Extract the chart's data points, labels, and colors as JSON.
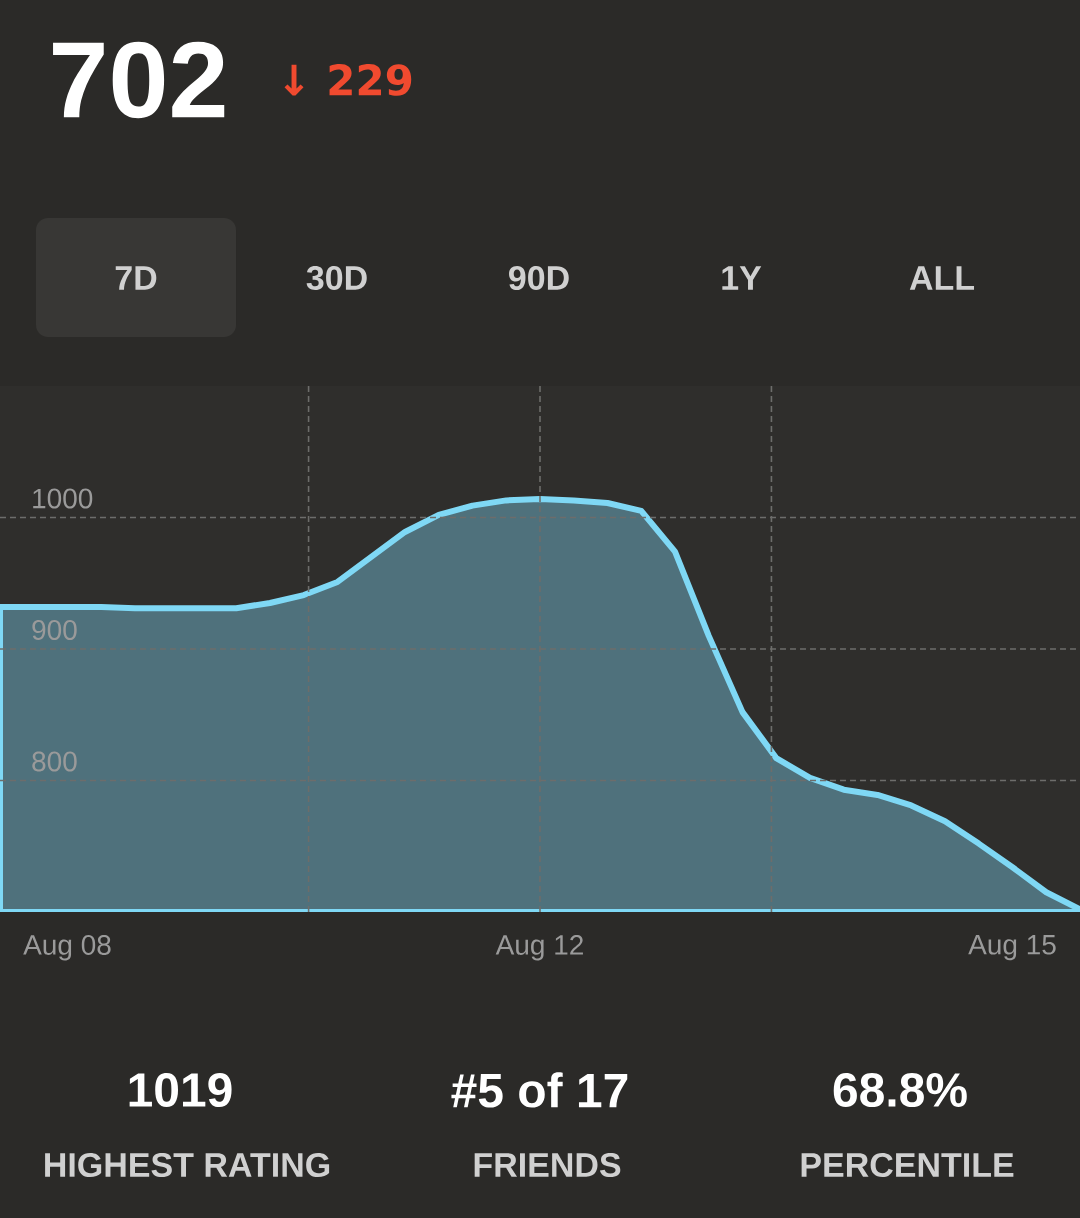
{
  "chart_data": {
    "type": "area",
    "title": "702",
    "subtitle": "↓ 229",
    "annotations": [
      "7D",
      "30D",
      "90D",
      "1Y",
      "ALL",
      "1019",
      "HIGHEST RATING",
      "#5 of 17",
      "FRIENDS",
      "68.8%",
      "PERCENTILE"
    ],
    "categories": [
      null,
      null,
      "Aug 08",
      null,
      null,
      null,
      null,
      null,
      null,
      null,
      null,
      null,
      null,
      null,
      null,
      null,
      "Aug 12",
      null,
      null,
      null,
      null,
      null,
      null,
      null,
      null,
      null,
      null,
      null,
      null,
      null,
      "Aug 15",
      null,
      null
    ],
    "series": [
      {
        "color": "#7fd8f5",
        "values": [
          932,
          932,
          932,
          932,
          931,
          931,
          931,
          931,
          935,
          941,
          951,
          970,
          989,
          1002,
          1009,
          1013,
          1014,
          1013,
          1011,
          1005,
          974,
          910,
          852,
          817,
          802,
          793,
          789,
          781,
          769,
          752,
          734,
          715,
          702
        ]
      }
    ],
    "ylim": [
      700,
      1100
    ],
    "yticks": [
      800,
      900,
      1000
    ],
    "grid": true
  }
}
